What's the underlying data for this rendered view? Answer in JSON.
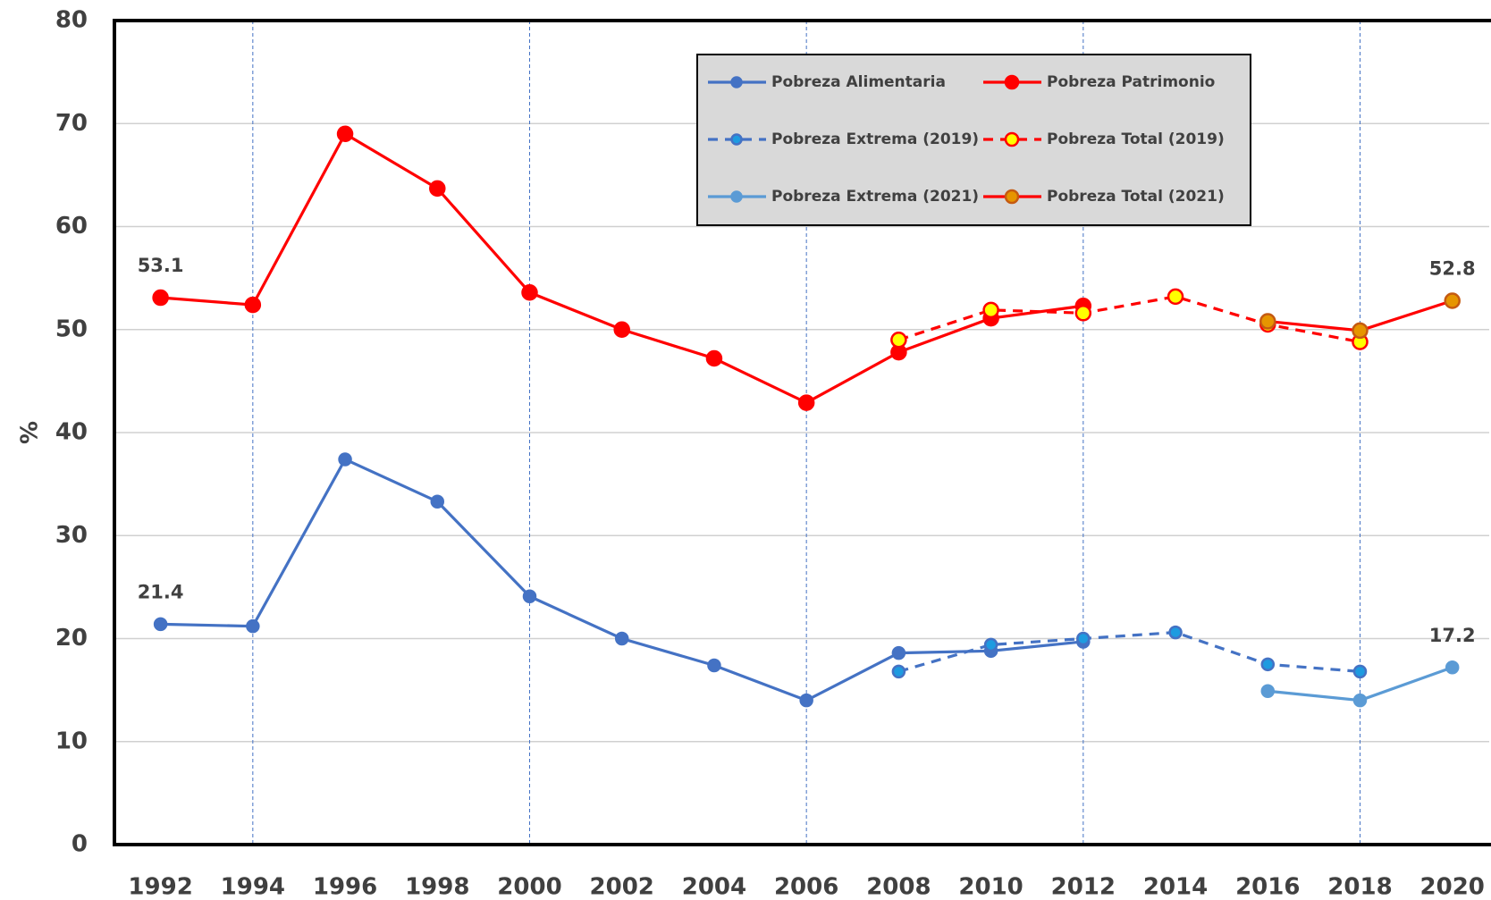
{
  "chart_data": {
    "type": "line",
    "y_label": "%",
    "x": [
      1992,
      1994,
      1996,
      1998,
      2000,
      2002,
      2004,
      2006,
      2008,
      2010,
      2012,
      2014,
      2016,
      2018,
      2020
    ],
    "xlim": [
      1991,
      2020.8
    ],
    "xticks": [
      1992,
      1994,
      1996,
      1998,
      2000,
      2002,
      2004,
      2006,
      2008,
      2010,
      2012,
      2014,
      2016,
      2018,
      2020
    ],
    "vlines": [
      1994,
      2000,
      2006,
      2012,
      2018
    ],
    "ylim": [
      0,
      80
    ],
    "yticks": [
      0,
      10,
      20,
      30,
      40,
      50,
      60,
      70,
      80
    ],
    "grid": true,
    "legend": "top",
    "series": [
      {
        "name": "Pobreza Alimentaria",
        "color": "#4472c4",
        "marker_fill": "#4472c4",
        "dashed": false,
        "values": [
          21.4,
          21.2,
          37.4,
          33.3,
          24.1,
          20.0,
          17.4,
          14.0,
          18.6,
          18.8,
          19.7,
          null,
          null,
          null,
          null
        ],
        "value_labels": [
          "21.4",
          null,
          null,
          null,
          null,
          null,
          null,
          null,
          null,
          null,
          null,
          null,
          null,
          null,
          null
        ]
      },
      {
        "name": "Pobreza Patrimonio",
        "color": "#ff0000",
        "marker_fill": "#ff0000",
        "dashed": false,
        "values": [
          53.1,
          52.4,
          69.0,
          63.7,
          53.6,
          50.0,
          47.2,
          42.9,
          47.8,
          51.1,
          52.3,
          null,
          null,
          null,
          null
        ],
        "value_labels": [
          "53.1",
          null,
          null,
          null,
          null,
          null,
          null,
          null,
          null,
          null,
          null,
          null,
          null,
          null,
          null
        ]
      },
      {
        "name": "Pobreza Extrema (2019)",
        "color": "#4472c4",
        "marker_fill": "#1e9be0",
        "dashed": true,
        "values": [
          null,
          null,
          null,
          null,
          null,
          null,
          null,
          null,
          16.8,
          19.4,
          20.0,
          20.6,
          17.5,
          16.8,
          null
        ]
      },
      {
        "name": "Pobreza Total (2019)",
        "color": "#ff0000",
        "marker_fill": "#ffff00",
        "dashed": true,
        "values": [
          null,
          null,
          null,
          null,
          null,
          null,
          null,
          null,
          49.0,
          51.9,
          51.6,
          53.2,
          50.5,
          48.8,
          null
        ]
      },
      {
        "name": "Pobreza Extrema (2021)",
        "color": "#5b9bd5",
        "marker_fill": "#5b9bd5",
        "dashed": false,
        "values": [
          null,
          null,
          null,
          null,
          null,
          null,
          null,
          null,
          null,
          null,
          null,
          null,
          14.9,
          14.0,
          17.2
        ],
        "value_labels": [
          null,
          null,
          null,
          null,
          null,
          null,
          null,
          null,
          null,
          null,
          null,
          null,
          null,
          null,
          "17.2"
        ]
      },
      {
        "name": "Pobreza Total (2021)",
        "color": "#ff0000",
        "marker_fill": "#e69500",
        "dashed": false,
        "values": [
          null,
          null,
          null,
          null,
          null,
          null,
          null,
          null,
          null,
          null,
          null,
          null,
          50.8,
          49.9,
          52.8
        ],
        "value_labels": [
          null,
          null,
          null,
          null,
          null,
          null,
          null,
          null,
          null,
          null,
          null,
          null,
          null,
          null,
          "52.8"
        ]
      }
    ]
  }
}
